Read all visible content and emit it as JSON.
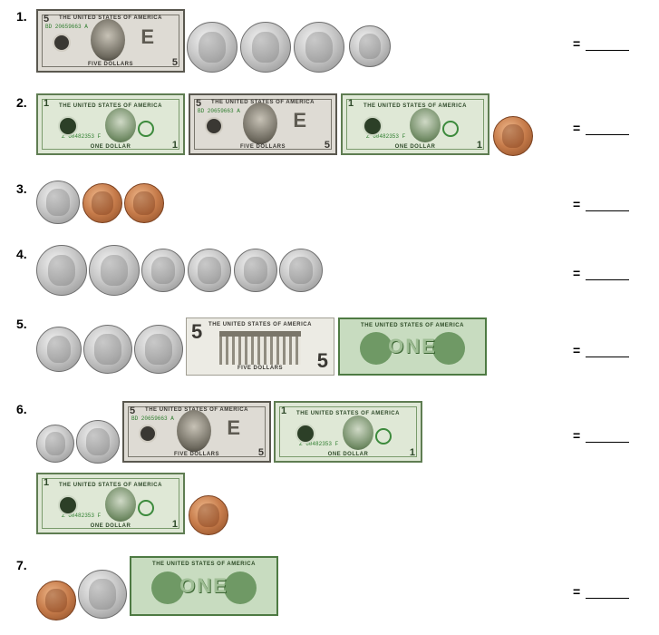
{
  "problems": [
    {
      "number": "1.",
      "answer_label": "="
    },
    {
      "number": "2.",
      "answer_label": "="
    },
    {
      "number": "3.",
      "answer_label": "="
    },
    {
      "number": "4.",
      "answer_label": "="
    },
    {
      "number": "5.",
      "answer_label": "="
    },
    {
      "number": "6.",
      "answer_label": "="
    },
    {
      "number": "7.",
      "answer_label": "="
    }
  ],
  "bills": {
    "one_front": {
      "title": "THE UNITED STATES OF AMERICA",
      "denomination": "1",
      "bottom": "ONE DOLLAR",
      "serial": "Z 60482353 F"
    },
    "five_front": {
      "title": "THE UNITED STATES OF AMERICA",
      "denomination": "5",
      "bottom": "FIVE DOLLARS",
      "serial": "BD 20659663 A"
    },
    "one_back": {
      "title": "THE UNITED STATES OF AMERICA",
      "word": "ONE"
    },
    "five_back": {
      "title": "THE UNITED STATES OF AMERICA",
      "denomination": "5",
      "bottom": "FIVE DOLLARS"
    }
  },
  "coin_kinds": [
    "quarter",
    "nickel",
    "dime",
    "penny"
  ]
}
